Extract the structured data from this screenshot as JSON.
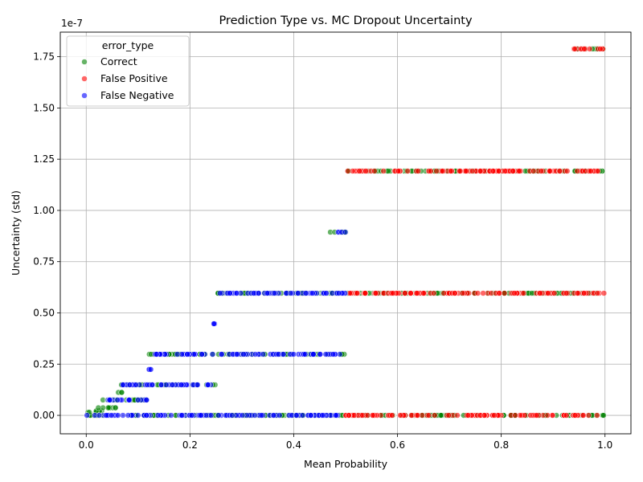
{
  "chart_data": {
    "type": "scatter",
    "title": "Prediction Type vs. MC Dropout Uncertainty",
    "xlabel": "Mean Probability",
    "ylabel": "Uncertainty (std)",
    "y_offset_text": "1e-7",
    "xlim": [
      -0.05,
      1.05
    ],
    "ylim": [
      -0.09,
      1.87
    ],
    "xticks": [
      0.0,
      0.2,
      0.4,
      0.6,
      0.8,
      1.0
    ],
    "xtick_labels": [
      "0.0",
      "0.2",
      "0.4",
      "0.6",
      "0.8",
      "1.0"
    ],
    "yticks": [
      0.0,
      0.25,
      0.5,
      0.75,
      1.0,
      1.25,
      1.5,
      1.75
    ],
    "ytick_labels": [
      "0.00",
      "0.25",
      "0.50",
      "0.75",
      "1.00",
      "1.25",
      "1.50",
      "1.75"
    ],
    "grid": true,
    "legend": {
      "title": "error_type",
      "placement": "top-left",
      "entries": [
        "Correct",
        "False Positive",
        "False Negative"
      ]
    },
    "series": [
      {
        "name": "Correct",
        "color": "#008000",
        "bands": [
          {
            "y": 0.0,
            "x_range": [
              0.0,
              1.0
            ]
          },
          {
            "y": 0.015,
            "x_range": [
              0.0,
              0.02
            ]
          },
          {
            "y": 0.022,
            "x_range": [
              0.01,
              0.03
            ]
          },
          {
            "y": 0.037,
            "x_range": [
              0.02,
              0.06
            ]
          },
          {
            "y": 0.075,
            "x_range": [
              0.03,
              0.12
            ]
          },
          {
            "y": 0.112,
            "x_range": [
              0.06,
              0.07
            ]
          },
          {
            "y": 0.149,
            "x_range": [
              0.06,
              0.25
            ]
          },
          {
            "y": 0.298,
            "x_range": [
              0.12,
              0.5
            ]
          },
          {
            "y": 0.596,
            "x_range": [
              0.25,
              1.0
            ]
          },
          {
            "y": 0.894,
            "x_range": [
              0.47,
              0.5
            ]
          },
          {
            "y": 1.192,
            "x_range": [
              0.5,
              1.0
            ]
          },
          {
            "y": 1.788,
            "x_range": [
              0.94,
              1.0
            ]
          }
        ]
      },
      {
        "name": "False Positive",
        "color": "#ff0000",
        "bands": [
          {
            "y": 0.0,
            "x_range": [
              0.5,
              1.0
            ]
          },
          {
            "y": 0.596,
            "x_range": [
              0.5,
              1.0
            ]
          },
          {
            "y": 1.192,
            "x_range": [
              0.5,
              1.0
            ]
          },
          {
            "y": 1.788,
            "x_range": [
              0.94,
              1.0
            ]
          }
        ]
      },
      {
        "name": "False Negative",
        "color": "#0000ff",
        "bands": [
          {
            "y": 0.0,
            "x_range": [
              0.0,
              0.5
            ]
          },
          {
            "y": 0.075,
            "x_range": [
              0.04,
              0.12
            ]
          },
          {
            "y": 0.149,
            "x_range": [
              0.07,
              0.25
            ]
          },
          {
            "y": 0.224,
            "x_range": [
              0.12,
              0.125
            ]
          },
          {
            "y": 0.298,
            "x_range": [
              0.13,
              0.5
            ]
          },
          {
            "y": 0.447,
            "x_range": [
              0.245,
              0.25
            ]
          },
          {
            "y": 0.596,
            "x_range": [
              0.25,
              0.5
            ]
          },
          {
            "y": 0.894,
            "x_range": [
              0.48,
              0.5
            ]
          }
        ]
      }
    ]
  }
}
